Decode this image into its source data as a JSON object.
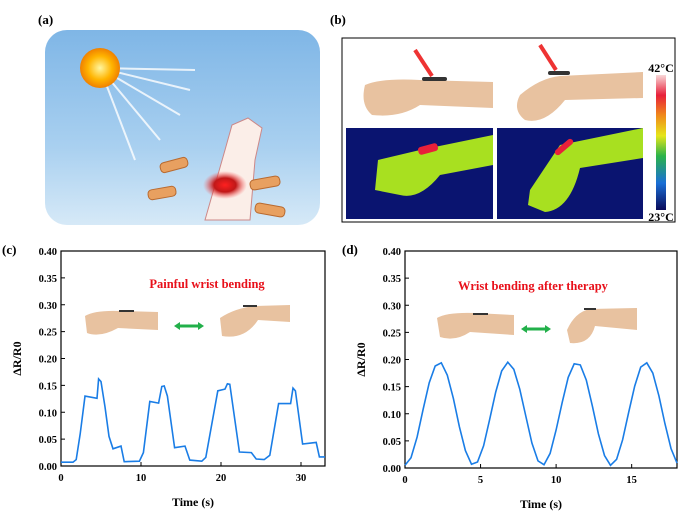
{
  "panels": {
    "a": {
      "label": "(a)"
    },
    "b": {
      "label": "(b)",
      "colorbar": {
        "max_label": "42°C",
        "min_label": "23°C",
        "colors": [
          "#0a0a5a",
          "#1a6fd6",
          "#2bb34a",
          "#e6e61a",
          "#f08a1a",
          "#e8203a",
          "#f8d8d8"
        ]
      }
    },
    "c": {
      "label": "(c)"
    },
    "d": {
      "label": "(d)"
    }
  },
  "colors": {
    "line": "#1a7de6",
    "annotation": "#e8101a",
    "arrow": "#22b04a",
    "skin": "#e8c2a0"
  },
  "chart_data": [
    {
      "type": "line",
      "title": "Painful wrist bending",
      "xlabel": "Time (s)",
      "ylabel": "ΔR/R0",
      "xlim": [
        0,
        33
      ],
      "ylim": [
        0,
        0.4
      ],
      "xticks": [
        "0",
        "10",
        "20",
        "30"
      ],
      "xtick_values": [
        0,
        10,
        20,
        30
      ],
      "yticks": [
        "0.00",
        "0.05",
        "0.10",
        "0.15",
        "0.20",
        "0.25",
        "0.30",
        "0.35",
        "0.40"
      ],
      "ytick_values": [
        0,
        0.05,
        0.1,
        0.15,
        0.2,
        0.25,
        0.3,
        0.35,
        0.4
      ],
      "x": [
        0,
        1.5,
        1.9,
        2.4,
        3,
        4.5,
        4.7,
        5,
        5.5,
        6,
        6.5,
        7.5,
        7.9,
        9.8,
        10.3,
        11.1,
        12.2,
        12.6,
        12.9,
        13.3,
        14.2,
        15.5,
        16.1,
        17.6,
        18.1,
        19.6,
        20.5,
        20.8,
        21.1,
        22.3,
        23.8,
        24.4,
        25.4,
        26.1,
        27.2,
        28.7,
        29,
        29.3,
        30.2,
        31.9,
        32.3,
        33
      ],
      "y": [
        0.007,
        0.007,
        0.012,
        0.06,
        0.13,
        0.126,
        0.162,
        0.157,
        0.11,
        0.055,
        0.032,
        0.037,
        0.008,
        0.009,
        0.025,
        0.12,
        0.117,
        0.148,
        0.149,
        0.13,
        0.034,
        0.037,
        0.011,
        0.009,
        0.016,
        0.14,
        0.143,
        0.153,
        0.152,
        0.026,
        0.025,
        0.013,
        0.012,
        0.02,
        0.116,
        0.116,
        0.145,
        0.14,
        0.041,
        0.044,
        0.017,
        0.017
      ]
    },
    {
      "type": "line",
      "title": "Wrist bending after therapy",
      "xlabel": "Time (s)",
      "ylabel": "ΔR/R0",
      "xlim": [
        0,
        18
      ],
      "ylim": [
        0,
        0.4
      ],
      "xticks": [
        "0",
        "5",
        "10",
        "15"
      ],
      "xtick_values": [
        0,
        5,
        10,
        15
      ],
      "yticks": [
        "0.00",
        "0.05",
        "0.10",
        "0.15",
        "0.20",
        "0.25",
        "0.30",
        "0.35",
        "0.40"
      ],
      "ytick_values": [
        0,
        0.05,
        0.1,
        0.15,
        0.2,
        0.25,
        0.3,
        0.35,
        0.4
      ],
      "x": [
        0,
        0.4,
        0.8,
        1.2,
        1.6,
        2.0,
        2.4,
        2.8,
        3.2,
        3.6,
        4.0,
        4.4,
        4.8,
        5.2,
        5.6,
        6.0,
        6.4,
        6.8,
        7.2,
        7.6,
        8.0,
        8.4,
        8.8,
        9.2,
        9.6,
        10.0,
        10.4,
        10.8,
        11.2,
        11.6,
        12.0,
        12.4,
        12.8,
        13.2,
        13.6,
        14.0,
        14.4,
        14.8,
        15.2,
        15.6,
        16.0,
        16.4,
        16.8,
        17.2,
        17.6,
        18.0
      ],
      "y": [
        0.005,
        0.019,
        0.057,
        0.108,
        0.157,
        0.188,
        0.194,
        0.171,
        0.128,
        0.076,
        0.032,
        0.007,
        0.011,
        0.041,
        0.089,
        0.14,
        0.179,
        0.195,
        0.182,
        0.145,
        0.095,
        0.046,
        0.013,
        0.006,
        0.027,
        0.07,
        0.121,
        0.167,
        0.192,
        0.19,
        0.162,
        0.114,
        0.063,
        0.023,
        0.005,
        0.016,
        0.052,
        0.102,
        0.151,
        0.186,
        0.194,
        0.175,
        0.133,
        0.082,
        0.036,
        0.009
      ]
    }
  ]
}
